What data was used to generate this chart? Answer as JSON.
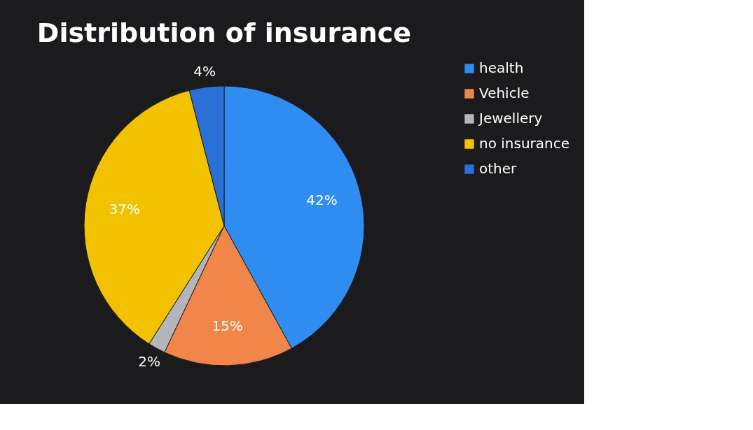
{
  "chart_data": {
    "type": "pie",
    "title": "Distribution of insurance",
    "categories": [
      "health",
      "Vehicle",
      "Jewellery",
      "no insurance",
      "other"
    ],
    "values": [
      42,
      15,
      2,
      37,
      4
    ],
    "colors": [
      "#2f8cf0",
      "#f0864a",
      "#b4b4bc",
      "#f2c200",
      "#2a6fd6"
    ],
    "value_labels": [
      "42%",
      "15%",
      "2%",
      "37%",
      "4%"
    ],
    "legend": "right"
  }
}
